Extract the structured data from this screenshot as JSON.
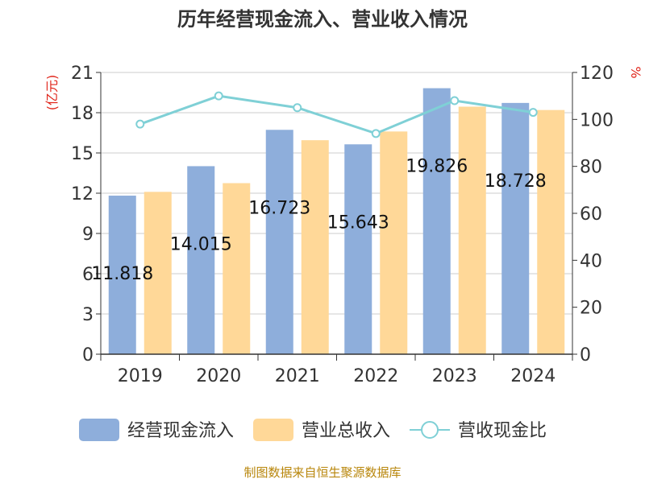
{
  "chart_data": {
    "type": "bar",
    "title": "历年经营现金流入、营业收入情况",
    "categories": [
      "2019",
      "2020",
      "2021",
      "2022",
      "2023",
      "2024"
    ],
    "series": [
      {
        "name": "经营现金流入",
        "kind": "bar",
        "axis": "left",
        "color": "#8eaedb",
        "values": [
          11.818,
          14.015,
          16.723,
          15.643,
          19.826,
          18.728
        ]
      },
      {
        "name": "营业总收入",
        "kind": "bar",
        "axis": "left",
        "color": "#ffd898",
        "values": [
          12.1,
          12.75,
          15.95,
          16.6,
          18.45,
          18.2
        ]
      },
      {
        "name": "营收现金比",
        "kind": "line",
        "axis": "right",
        "color": "#7fd0d6",
        "values": [
          98,
          110,
          105,
          94,
          108,
          103
        ]
      }
    ],
    "data_labels": [
      "11.818",
      "14.015",
      "16.723",
      "15.643",
      "19.826",
      "18.728"
    ],
    "y_left": {
      "unit": "(亿元)",
      "ylim": [
        0,
        21
      ],
      "ticks": [
        0,
        3,
        6,
        9,
        12,
        15,
        18,
        21
      ]
    },
    "y_right": {
      "unit": "%",
      "ylim": [
        0,
        120
      ],
      "ticks": [
        0,
        20,
        40,
        60,
        80,
        100,
        120
      ]
    },
    "grid": true,
    "legend_position": "bottom",
    "source": "制图数据来自恒生聚源数据库"
  }
}
